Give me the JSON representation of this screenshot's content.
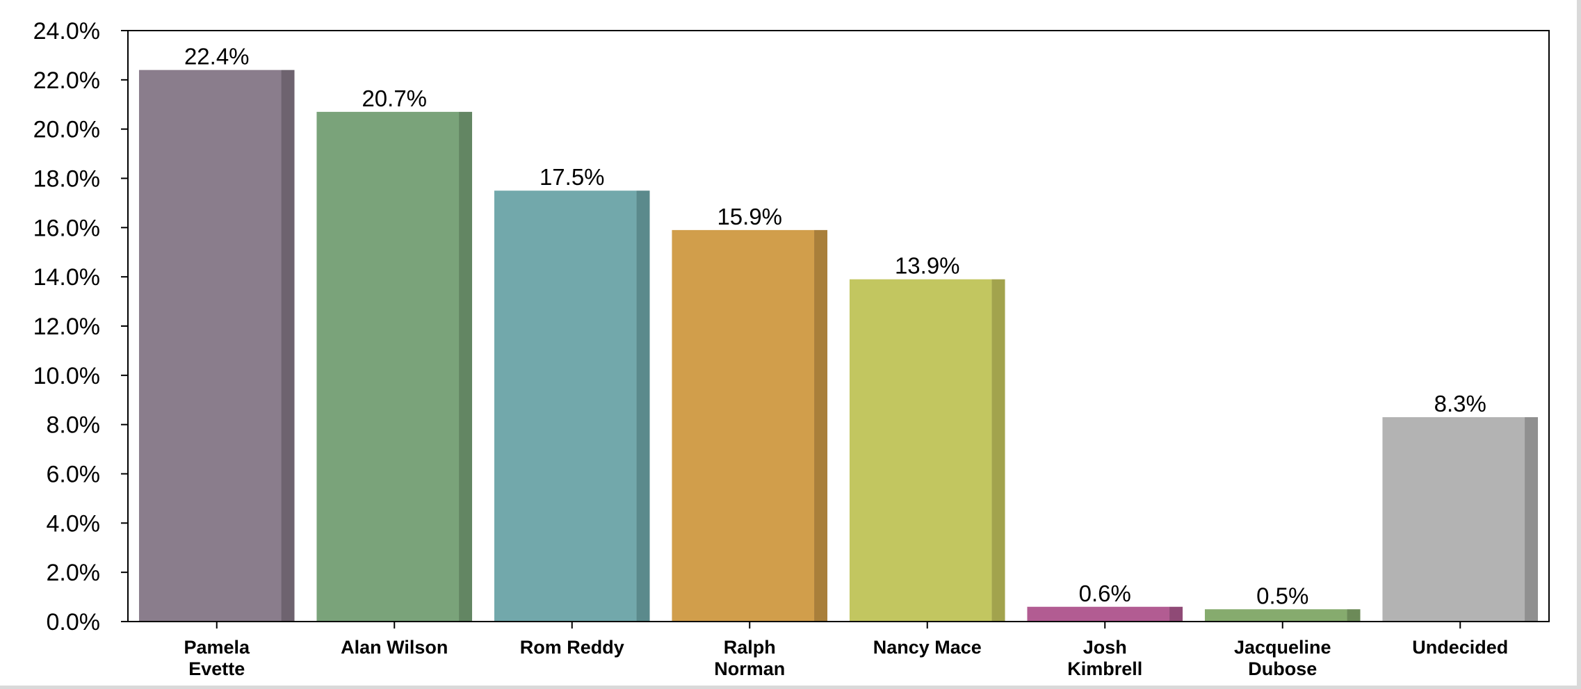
{
  "chart_data": {
    "type": "bar",
    "title": "",
    "xlabel": "",
    "ylabel": "",
    "ylim": [
      0,
      24
    ],
    "ytick_step": 2,
    "ytick_labels": [
      "0.0%",
      "2.0%",
      "4.0%",
      "6.0%",
      "8.0%",
      "10.0%",
      "12.0%",
      "14.0%",
      "16.0%",
      "18.0%",
      "20.0%",
      "22.0%",
      "24.0%"
    ],
    "grid": false,
    "legend": "none",
    "categories": [
      [
        "Pamela",
        "Evette"
      ],
      [
        "Alan Wilson"
      ],
      [
        "Rom Reddy"
      ],
      [
        "Ralph",
        "Norman"
      ],
      [
        "Nancy Mace"
      ],
      [
        "Josh",
        "Kimbrell"
      ],
      [
        "Jacqueline",
        "Dubose"
      ],
      [
        "Undecided"
      ]
    ],
    "values": [
      22.4,
      20.7,
      17.5,
      15.9,
      13.9,
      0.6,
      0.5,
      8.3
    ],
    "data_labels": [
      "22.4%",
      "20.7%",
      "17.5%",
      "15.9%",
      "13.9%",
      "0.6%",
      "0.5%",
      "8.3%"
    ],
    "colors": [
      "#8a7d8c",
      "#7aa37a",
      "#72a8ab",
      "#d19e4b",
      "#c2c660",
      "#b25c92",
      "#86ab6e",
      "#b3b3b3"
    ],
    "shade_colors": [
      "#6e636f",
      "#638663",
      "#5b8a8c",
      "#a97f3a",
      "#a2a34d",
      "#8f4a76",
      "#6c8a58",
      "#909090"
    ]
  }
}
